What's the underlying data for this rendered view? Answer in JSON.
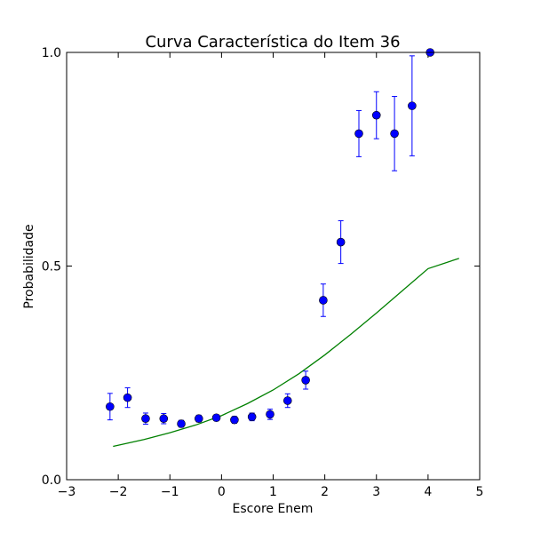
{
  "chart_data": {
    "type": "scatter",
    "title": "Curva Característica do Item 36",
    "xlabel": "Escore Enem",
    "ylabel": "Probabilidade",
    "xlim": [
      -3,
      5
    ],
    "ylim": [
      0.0,
      1.0
    ],
    "x_ticks": [
      -3,
      -2,
      -1,
      0,
      1,
      2,
      3,
      4,
      5
    ],
    "x_tick_labels": [
      "−3",
      "−2",
      "−1",
      "0",
      "1",
      "2",
      "3",
      "4",
      "5"
    ],
    "y_ticks": [
      0.0,
      0.5,
      1.0
    ],
    "y_tick_labels": [
      "0.0",
      "0.5",
      "1.0"
    ],
    "grid": false,
    "series": [
      {
        "kind": "errorbar",
        "color": "#0000ff",
        "points": [
          {
            "x": -2.16,
            "y": 0.171,
            "err": 0.031
          },
          {
            "x": -1.82,
            "y": 0.192,
            "err": 0.023
          },
          {
            "x": -1.47,
            "y": 0.143,
            "err": 0.013
          },
          {
            "x": -1.12,
            "y": 0.143,
            "err": 0.012
          },
          {
            "x": -0.78,
            "y": 0.131,
            "err": 0.008
          },
          {
            "x": -0.44,
            "y": 0.143,
            "err": 0.008
          },
          {
            "x": -0.1,
            "y": 0.145,
            "err": 0.007
          },
          {
            "x": 0.25,
            "y": 0.14,
            "err": 0.008
          },
          {
            "x": 0.59,
            "y": 0.147,
            "err": 0.009
          },
          {
            "x": 0.94,
            "y": 0.153,
            "err": 0.012
          },
          {
            "x": 1.28,
            "y": 0.185,
            "err": 0.016
          },
          {
            "x": 1.63,
            "y": 0.233,
            "err": 0.021
          },
          {
            "x": 1.97,
            "y": 0.42,
            "err": 0.038
          },
          {
            "x": 2.31,
            "y": 0.556,
            "err": 0.05
          },
          {
            "x": 2.66,
            "y": 0.81,
            "err": 0.054
          },
          {
            "x": 3.0,
            "y": 0.853,
            "err": 0.055
          },
          {
            "x": 3.35,
            "y": 0.81,
            "err": 0.087
          },
          {
            "x": 3.69,
            "y": 0.875,
            "err": 0.117
          },
          {
            "x": 4.04,
            "y": 1.0,
            "err": 0.0
          }
        ]
      },
      {
        "kind": "line",
        "color": "#008000",
        "points": [
          {
            "x": -2.1,
            "y": 0.078
          },
          {
            "x": -1.5,
            "y": 0.094
          },
          {
            "x": -1.0,
            "y": 0.11
          },
          {
            "x": -0.5,
            "y": 0.128
          },
          {
            "x": 0.0,
            "y": 0.15
          },
          {
            "x": 0.5,
            "y": 0.178
          },
          {
            "x": 1.0,
            "y": 0.21
          },
          {
            "x": 1.5,
            "y": 0.248
          },
          {
            "x": 2.0,
            "y": 0.292
          },
          {
            "x": 2.5,
            "y": 0.34
          },
          {
            "x": 3.0,
            "y": 0.39
          },
          {
            "x": 3.5,
            "y": 0.442
          },
          {
            "x": 4.0,
            "y": 0.494
          },
          {
            "x": 4.6,
            "y": 0.518
          }
        ]
      }
    ]
  }
}
